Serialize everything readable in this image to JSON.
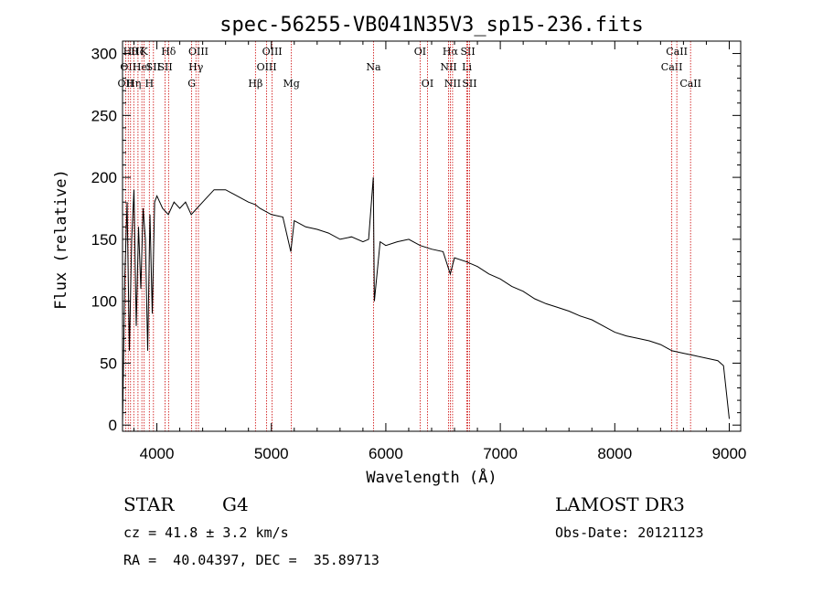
{
  "chart_data": {
    "type": "line",
    "title": "spec-56255-VB041N35V3_sp15-236.fits",
    "xlabel": "Wavelength (Å)",
    "ylabel": "Flux (relative)",
    "xlim": [
      3700,
      9100
    ],
    "ylim": [
      -5,
      310
    ],
    "xticks": [
      4000,
      5000,
      6000,
      7000,
      8000,
      9000
    ],
    "yticks": [
      0,
      50,
      100,
      150,
      200,
      250,
      300
    ],
    "series": [
      {
        "name": "spectrum",
        "x": [
          3700,
          3720,
          3740,
          3760,
          3780,
          3800,
          3820,
          3840,
          3860,
          3880,
          3900,
          3920,
          3940,
          3960,
          3980,
          4000,
          4050,
          4100,
          4150,
          4200,
          4250,
          4300,
          4350,
          4400,
          4500,
          4600,
          4700,
          4800,
          4860,
          4900,
          5000,
          5100,
          5170,
          5200,
          5300,
          5400,
          5500,
          5600,
          5700,
          5800,
          5850,
          5890,
          5900,
          5950,
          6000,
          6100,
          6200,
          6300,
          6400,
          6500,
          6563,
          6600,
          6700,
          6800,
          6900,
          7000,
          7100,
          7200,
          7300,
          7400,
          7500,
          7600,
          7700,
          7800,
          7900,
          8000,
          8100,
          8200,
          8300,
          8400,
          8500,
          8600,
          8700,
          8800,
          8900,
          8950,
          9000
        ],
        "y": [
          0,
          120,
          180,
          60,
          150,
          190,
          80,
          160,
          110,
          175,
          150,
          60,
          170,
          90,
          180,
          185,
          175,
          170,
          180,
          175,
          180,
          170,
          175,
          180,
          190,
          190,
          185,
          180,
          178,
          175,
          170,
          168,
          140,
          165,
          160,
          158,
          155,
          150,
          152,
          148,
          150,
          200,
          100,
          148,
          145,
          148,
          150,
          145,
          142,
          140,
          122,
          135,
          132,
          128,
          122,
          118,
          112,
          108,
          102,
          98,
          95,
          92,
          88,
          85,
          80,
          75,
          72,
          70,
          68,
          65,
          60,
          58,
          56,
          54,
          52,
          48,
          5
        ]
      }
    ],
    "lines": [
      {
        "x": 3727,
        "label": "OII",
        "row": 2
      },
      {
        "x": 3750,
        "label": "OII",
        "row": 1
      },
      {
        "x": 3770,
        "label": "Hθ",
        "row": 0
      },
      {
        "x": 3798,
        "label": "Hη",
        "row": 2
      },
      {
        "x": 3835,
        "label": "Hζ",
        "row": 0
      },
      {
        "x": 3869,
        "label": "HeI",
        "row": 1
      },
      {
        "x": 3889,
        "label": "K",
        "row": 0
      },
      {
        "x": 3934,
        "label": "H",
        "row": 2
      },
      {
        "x": 3970,
        "label": "SII",
        "row": 1
      },
      {
        "x": 4072,
        "label": "SII",
        "row": 1
      },
      {
        "x": 4102,
        "label": "Hδ",
        "row": 0
      },
      {
        "x": 4304,
        "label": "G",
        "row": 2
      },
      {
        "x": 4341,
        "label": "Hγ",
        "row": 1
      },
      {
        "x": 4363,
        "label": "OIII",
        "row": 0
      },
      {
        "x": 4861,
        "label": "Hβ",
        "row": 2
      },
      {
        "x": 4959,
        "label": "OIII",
        "row": 1
      },
      {
        "x": 5007,
        "label": "OIII",
        "row": 0
      },
      {
        "x": 5175,
        "label": "Mg",
        "row": 2
      },
      {
        "x": 5893,
        "label": "Na",
        "row": 1
      },
      {
        "x": 6300,
        "label": "OI",
        "row": 0
      },
      {
        "x": 6364,
        "label": "OI",
        "row": 2
      },
      {
        "x": 6548,
        "label": "NII",
        "row": 1
      },
      {
        "x": 6563,
        "label": "Hα",
        "row": 0
      },
      {
        "x": 6583,
        "label": "NII",
        "row": 2
      },
      {
        "x": 6708,
        "label": "Li",
        "row": 1
      },
      {
        "x": 6716,
        "label": "SII",
        "row": 0
      },
      {
        "x": 6731,
        "label": "SII",
        "row": 2
      },
      {
        "x": 8498,
        "label": "CaII",
        "row": 1
      },
      {
        "x": 8542,
        "label": "CaII",
        "row": 0
      },
      {
        "x": 8662,
        "label": "CaII",
        "row": 2
      }
    ]
  },
  "info": {
    "class": "STAR",
    "subclass": "G4",
    "survey": "LAMOST DR3",
    "cz": "cz = 41.8 ± 3.2 km/s",
    "obs_date": "Obs-Date: 20121123",
    "radec": "RA =  40.04397, DEC =  35.89713"
  }
}
